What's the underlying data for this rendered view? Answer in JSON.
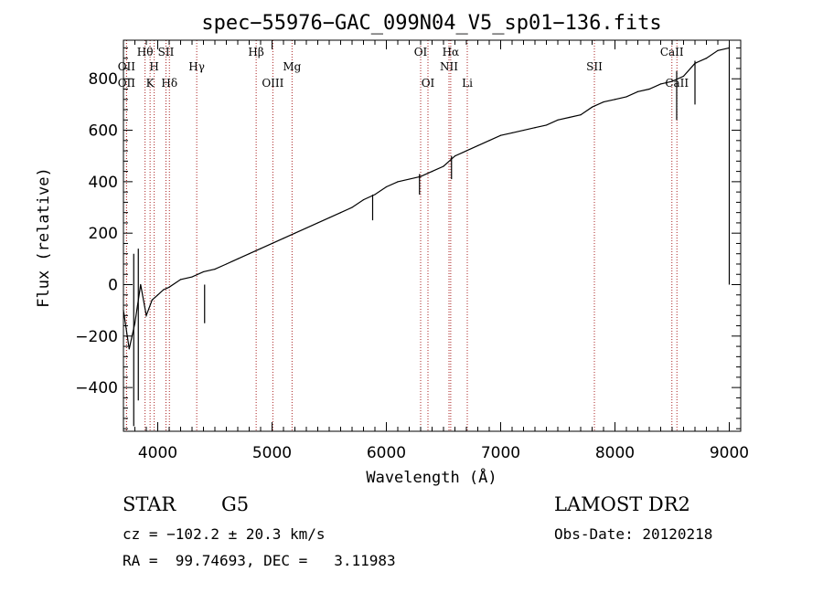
{
  "chart_data": {
    "type": "line",
    "title": "spec−55976−GAC_099N04_V5_sp01−136.fits",
    "xlabel": "Wavelength (Å)",
    "ylabel": "Flux (relative)",
    "xlim": [
      3700,
      9100
    ],
    "ylim": [
      -570,
      950
    ],
    "x_ticks": [
      4000,
      5000,
      6000,
      7000,
      8000,
      9000
    ],
    "x_tick_labels": [
      "4000",
      "5000",
      "6000",
      "7000",
      "8000",
      "9000"
    ],
    "y_ticks": [
      -400,
      -200,
      0,
      200,
      400,
      600,
      800
    ],
    "y_tick_labels": [
      "−400",
      "−200",
      "0",
      "200",
      "400",
      "600",
      "800"
    ],
    "grid": false,
    "line_color": "#000000",
    "marker_line_color": "#aa2222",
    "series": [
      {
        "x": [
          3700,
          3750,
          3800,
          3850,
          3900,
          3950,
          4000,
          4050,
          4100,
          4200,
          4300,
          4400,
          4500,
          4600,
          4700,
          4800,
          4900,
          5000,
          5100,
          5200,
          5300,
          5400,
          5500,
          5600,
          5700,
          5800,
          5900,
          6000,
          6100,
          6200,
          6300,
          6400,
          6500,
          6600,
          6700,
          6800,
          6900,
          7000,
          7100,
          7200,
          7300,
          7400,
          7500,
          7600,
          7700,
          7800,
          7900,
          8000,
          8100,
          8200,
          8300,
          8400,
          8500,
          8600,
          8700,
          8800,
          8900,
          9000
        ],
        "y": [
          -100,
          -250,
          -150,
          0,
          -120,
          -60,
          -40,
          -20,
          -10,
          20,
          30,
          50,
          60,
          80,
          100,
          120,
          140,
          160,
          180,
          200,
          220,
          240,
          260,
          280,
          300,
          330,
          350,
          380,
          400,
          410,
          420,
          440,
          460,
          500,
          520,
          540,
          560,
          580,
          590,
          600,
          610,
          620,
          640,
          650,
          660,
          690,
          710,
          720,
          730,
          750,
          760,
          780,
          790,
          810,
          860,
          880,
          910,
          920
        ]
      }
    ],
    "spike_lines": [
      {
        "x": 3790,
        "y_low": -550,
        "y_high": 120
      },
      {
        "x": 3830,
        "y_low": -450,
        "y_high": 140
      },
      {
        "x": 4410,
        "y_low": -150,
        "y_high": 0
      },
      {
        "x": 5880,
        "y_low": 250,
        "y_high": 350
      },
      {
        "x": 6290,
        "y_low": 350,
        "y_high": 430
      },
      {
        "x": 6570,
        "y_low": 410,
        "y_high": 500
      },
      {
        "x": 8540,
        "y_low": 640,
        "y_high": 830
      },
      {
        "x": 8700,
        "y_low": 700,
        "y_high": 870
      },
      {
        "x": 9000,
        "y_low": 0,
        "y_high": 930
      }
    ],
    "spectral_lines": [
      {
        "x": 3727,
        "row": 2,
        "label": "OII"
      },
      {
        "x": 3727,
        "row": 3,
        "label": "OII"
      },
      {
        "x": 3889,
        "row": 1,
        "label": "Hθ"
      },
      {
        "x": 3933,
        "row": 3,
        "label": "K"
      },
      {
        "x": 3969,
        "row": 2,
        "label": "H"
      },
      {
        "x": 4072,
        "row": 1,
        "label": "SII"
      },
      {
        "x": 4102,
        "row": 3,
        "label": "Hδ"
      },
      {
        "x": 4341,
        "row": 2,
        "label": "Hγ"
      },
      {
        "x": 4861,
        "row": 1,
        "label": "Hβ"
      },
      {
        "x": 5007,
        "row": 3,
        "label": "OIII"
      },
      {
        "x": 5175,
        "row": 2,
        "label": "Mg"
      },
      {
        "x": 6300,
        "row": 1,
        "label": "OI"
      },
      {
        "x": 6364,
        "row": 3,
        "label": "OI"
      },
      {
        "x": 6548,
        "row": 2,
        "label": "NII"
      },
      {
        "x": 6563,
        "row": 1,
        "label": "Hα"
      },
      {
        "x": 6708,
        "row": 3,
        "label": "Li"
      },
      {
        "x": 7820,
        "row": 2,
        "label": "SII"
      },
      {
        "x": 8498,
        "row": 1,
        "label": "CaII"
      },
      {
        "x": 8542,
        "row": 3,
        "label": "CaII"
      }
    ]
  },
  "info": {
    "object_class": "STAR",
    "subclass": "G5",
    "survey": "LAMOST DR2",
    "cz": "cz = −102.2 ± 20.3 km/s",
    "obs_date": "Obs-Date: 20120218",
    "coords": "RA =  99.74693, DEC =   3.11983"
  }
}
